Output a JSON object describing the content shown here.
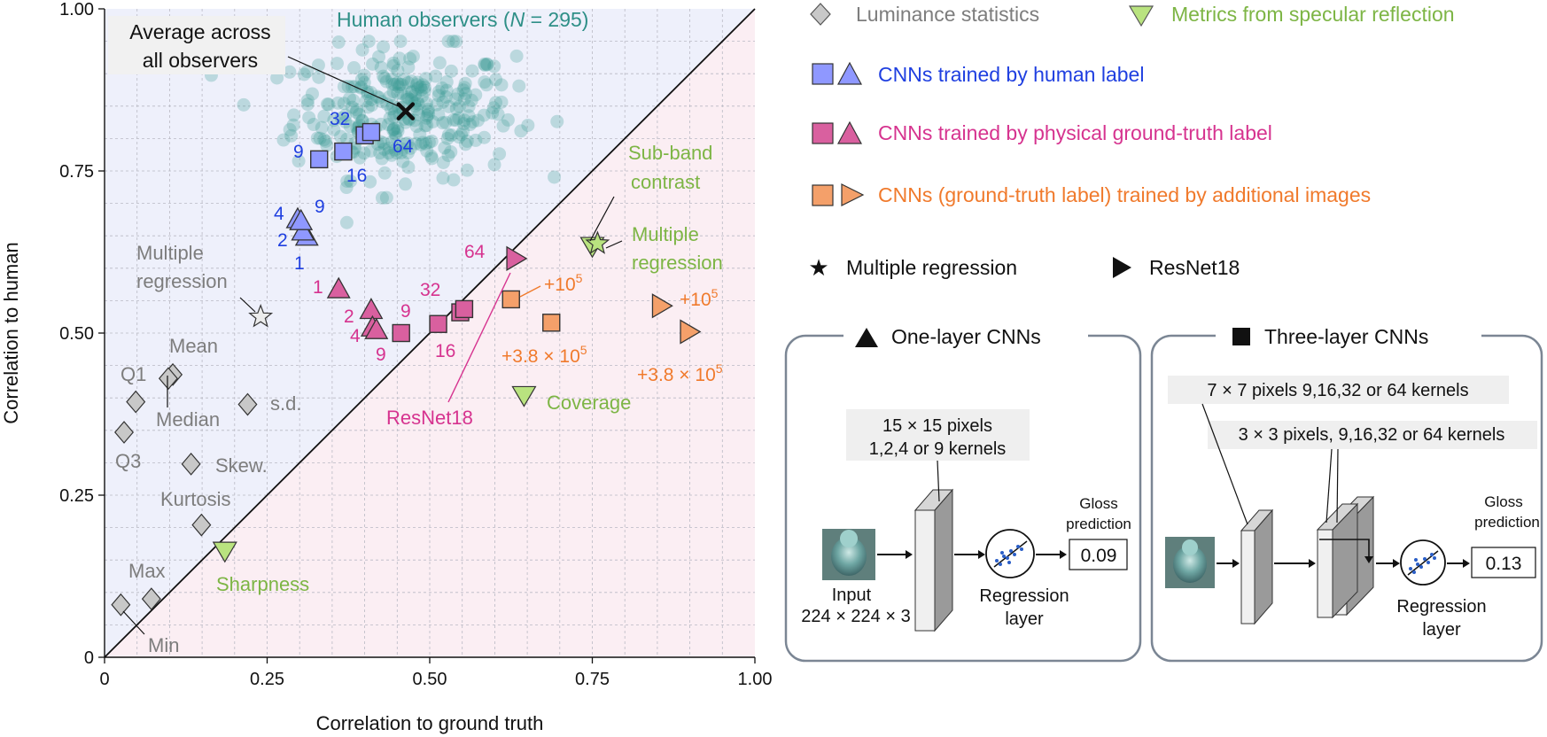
{
  "colors": {
    "human": "#3a9a92",
    "human_text": "#2e8f87",
    "gray_marker": "#c8c8c8",
    "gray_text": "#7d7d7d",
    "green": "#7db545",
    "green_fill": "#b9e37f",
    "blue": "#1f3fe0",
    "blue_fill": "#8f98ff",
    "magenta": "#d6338f",
    "magenta_fill": "#d9609f",
    "orange": "#f07a2c",
    "orange_fill": "#f4a06a",
    "region_upper": "#eef0fb",
    "region_lower": "#fbeef3",
    "panel_border": "#7b8694"
  },
  "chart_data": {
    "type": "scatter",
    "xlabel": "Correlation to ground truth",
    "ylabel": "Correlation to human",
    "xlim": [
      0,
      1
    ],
    "ylim": [
      0,
      1
    ],
    "xticks": [
      "0",
      "0.25",
      "0.50",
      "0.75",
      "1.00"
    ],
    "yticks": [
      "0",
      "0.25",
      "0.50",
      "0.75",
      "1.00"
    ],
    "grid": true,
    "diagonal": "y = x",
    "human_observers": {
      "label_prefix": "Human observers (",
      "label_n": "N",
      "label_suffix": " = 295)",
      "count": 295,
      "x_center": 0.46,
      "y_center": 0.84,
      "x_range": [
        0.12,
        0.72
      ],
      "y_range": [
        0.6,
        0.95
      ]
    },
    "average_observer": {
      "x": 0.463,
      "y": 0.842,
      "label_line1": "Average across",
      "label_line2": "all observers"
    },
    "luminance_statistics": [
      {
        "name": "Mean",
        "x": 0.105,
        "y": 0.436
      },
      {
        "name": "Median",
        "x": 0.098,
        "y": 0.43
      },
      {
        "name": "Q1",
        "x": 0.048,
        "y": 0.394
      },
      {
        "name": "Q3",
        "x": 0.03,
        "y": 0.347
      },
      {
        "name": "s.d.",
        "x": 0.22,
        "y": 0.39
      },
      {
        "name": "Skew.",
        "x": 0.133,
        "y": 0.298
      },
      {
        "name": "Kurtosis",
        "x": 0.149,
        "y": 0.204
      },
      {
        "name": "Max",
        "x": 0.072,
        "y": 0.09
      },
      {
        "name": "Min",
        "x": 0.025,
        "y": 0.081
      }
    ],
    "luminance_multiple_regression": {
      "name_line1": "Multiple",
      "name_line2": "regression",
      "x": 0.24,
      "y": 0.525
    },
    "specular_metrics": [
      {
        "name": "Sharpness",
        "x": 0.185,
        "y": 0.165
      },
      {
        "name": "Coverage",
        "x": 0.645,
        "y": 0.405
      },
      {
        "name_line1": "Sub-band",
        "name_line2": "contrast",
        "x": 0.75,
        "y": 0.635
      }
    ],
    "specular_multiple_regression": {
      "name_line1": "Multiple",
      "name_line2": "regression",
      "x": 0.758,
      "y": 0.638
    },
    "cnn_human_label": {
      "one_layer": [
        {
          "kernels": "1",
          "x": 0.311,
          "y": 0.648
        },
        {
          "kernels": "2",
          "x": 0.305,
          "y": 0.656
        },
        {
          "kernels": "4",
          "x": 0.297,
          "y": 0.675
        },
        {
          "kernels": "9",
          "x": 0.302,
          "y": 0.672
        }
      ],
      "three_layer": [
        {
          "kernels": "9",
          "x": 0.33,
          "y": 0.768
        },
        {
          "kernels": "16",
          "x": 0.367,
          "y": 0.78
        },
        {
          "kernels": "32",
          "x": 0.4,
          "y": 0.805
        },
        {
          "kernels": "64",
          "x": 0.41,
          "y": 0.81
        }
      ]
    },
    "cnn_ground_truth_label": {
      "one_layer": [
        {
          "kernels": "1",
          "x": 0.36,
          "y": 0.567
        },
        {
          "kernels": "2",
          "x": 0.41,
          "y": 0.535
        },
        {
          "kernels": "4",
          "x": 0.412,
          "y": 0.508
        },
        {
          "kernels": "9",
          "x": 0.418,
          "y": 0.504
        }
      ],
      "three_layer": [
        {
          "kernels": "9",
          "x": 0.456,
          "y": 0.5
        },
        {
          "kernels": "16",
          "x": 0.513,
          "y": 0.514
        },
        {
          "kernels": "32",
          "x": 0.547,
          "y": 0.532
        },
        {
          "kernels": "64",
          "x": 0.553,
          "y": 0.537
        }
      ],
      "resnet18": {
        "name": "ResNet18",
        "x": 0.631,
        "y": 0.615
      }
    },
    "cnn_additional_images": {
      "three_layer": [
        {
          "label": "+10^5",
          "x": 0.625,
          "y": 0.552
        },
        {
          "label": "+3.8 × 10^5",
          "x": 0.687,
          "y": 0.516
        }
      ],
      "resnet18": [
        {
          "label": "+10^5",
          "x": 0.855,
          "y": 0.542
        },
        {
          "label": "+3.8 × 10^5",
          "x": 0.898,
          "y": 0.502
        }
      ]
    }
  },
  "plot_text": {
    "human_label_prefix": "Human observers (",
    "human_label_n": "N",
    "human_label_suffix": " = 295)",
    "average_line1": "Average across",
    "average_line2": "all observers",
    "lum_labels": {
      "mean": "Mean",
      "q1": "Q1",
      "median": "Median",
      "q3": "Q3",
      "sd": "s.d.",
      "skew": "Skew.",
      "kurtosis": "Kurtosis",
      "max": "Max",
      "min": "Min"
    },
    "lum_regression_line1": "Multiple",
    "lum_regression_line2": "regression",
    "sharpness": "Sharpness",
    "coverage": "Coverage",
    "subband_line1": "Sub-band",
    "subband_line2": "contrast",
    "spec_regression_line1": "Multiple",
    "spec_regression_line2": "regression",
    "resnet18": "ResNet18",
    "plus_base": "+10",
    "plus_exp": "5",
    "plus38_base": "+3.8 × 10",
    "plus38_exp": "5",
    "k1": "1",
    "k2": "2",
    "k4": "4",
    "k9": "9",
    "k16": "16",
    "k32": "32",
    "k64": "64"
  },
  "legend": {
    "luminance": "Luminance statistics",
    "specular": "Metrics from specular reflection",
    "human_label": "CNNs trained by human label",
    "ground_truth_label": "CNNs trained by physical ground-truth label",
    "additional_images": "CNNs (ground-truth label) trained by additional images",
    "multiple_regression": "Multiple regression",
    "resnet18": "ResNet18"
  },
  "one_layer_panel": {
    "title": "One-layer CNNs",
    "kernel_line1": "15 × 15 pixels",
    "kernel_line2": "1,2,4 or 9 kernels",
    "input_line1": "Input",
    "input_line2": "224 × 224 × 3",
    "regression_line1": "Regression",
    "regression_line2": "layer",
    "gloss_line1": "Gloss",
    "gloss_line2": "prediction",
    "gloss_value": "0.09"
  },
  "three_layer_panel": {
    "title": "Three-layer CNNs",
    "layer1": "7 × 7 pixels  9,16,32 or 64 kernels",
    "layer2": "3 × 3 pixels, 9,16,32 or 64 kernels",
    "regression_line1": "Regression",
    "regression_line2": "layer",
    "gloss_line1": "Gloss",
    "gloss_line2": "prediction",
    "gloss_value": "0.13"
  }
}
